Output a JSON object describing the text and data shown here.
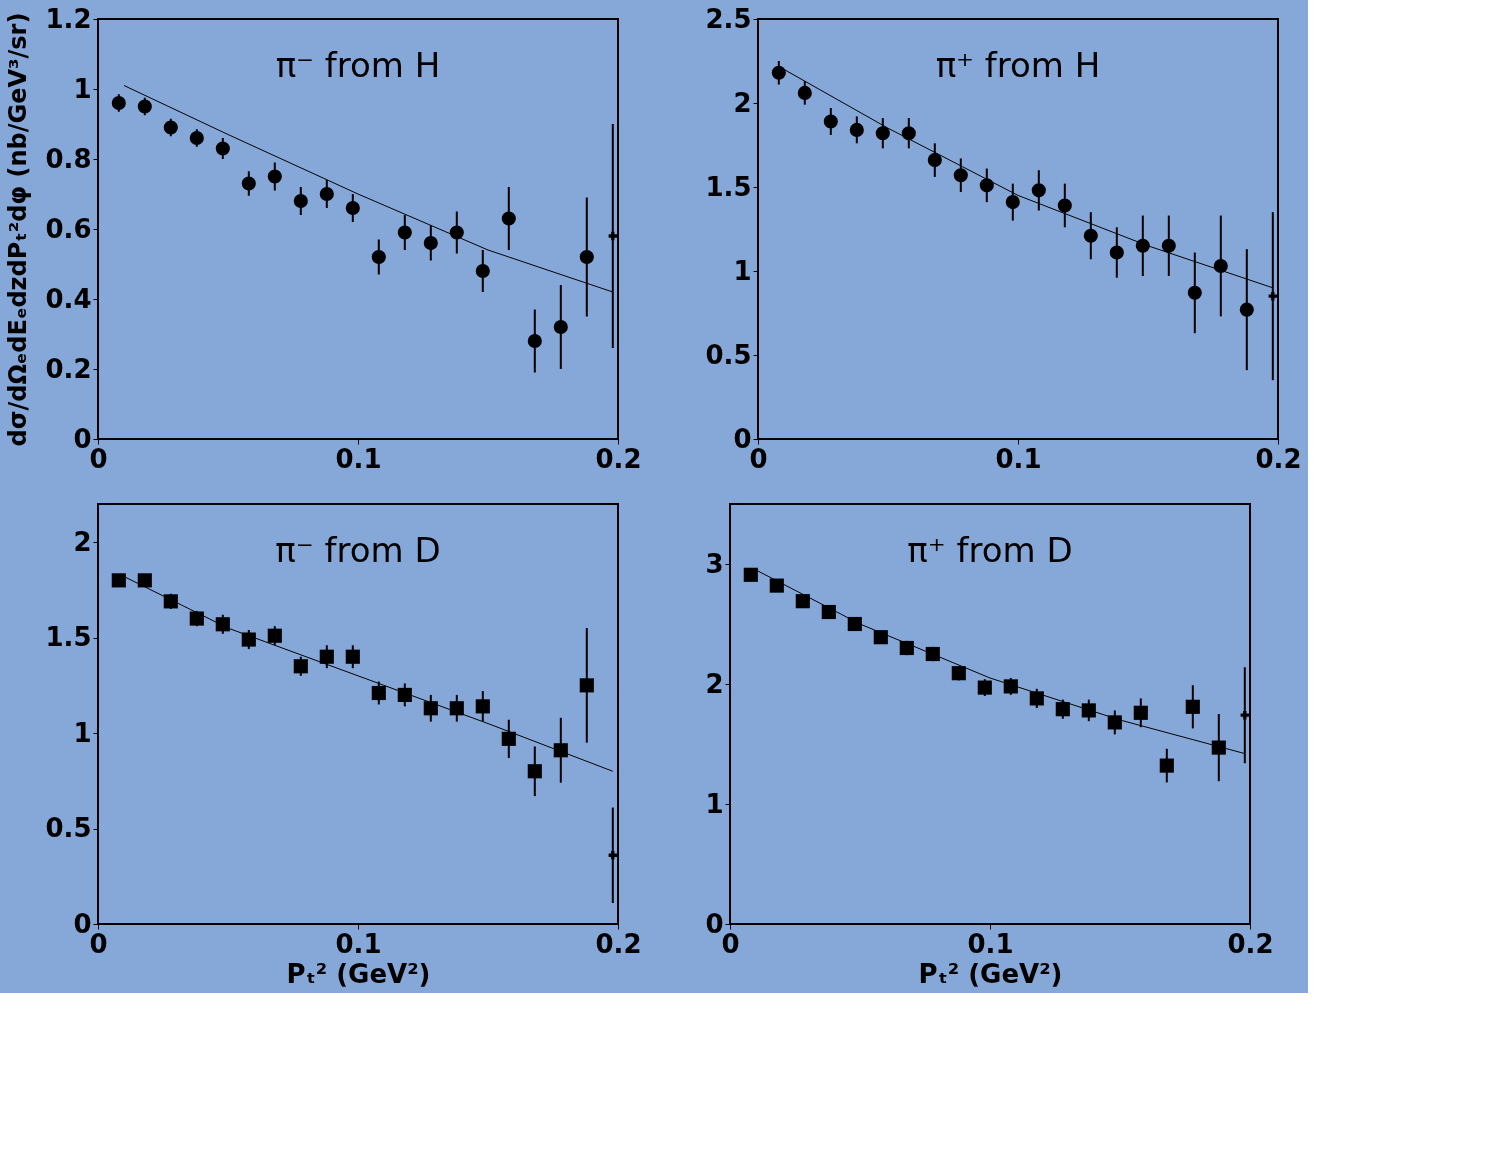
{
  "chart_data": [
    {
      "type": "scatter",
      "title": "π⁻ from H",
      "ylabel": "dσ/dΩₑdEₑdzdPₜ²dφ  (nb/GeV³/sr)",
      "xlim": [
        0,
        0.2
      ],
      "xticks": [
        0,
        0.1,
        0.2
      ],
      "ylim": [
        0,
        1.2
      ],
      "yticks": [
        0,
        0.2,
        0.4,
        0.6,
        0.8,
        1,
        1.2
      ],
      "grid": false,
      "series": [
        {
          "marker": "circle",
          "color": "#000000",
          "x": [
            0.008,
            0.018,
            0.028,
            0.038,
            0.048,
            0.058,
            0.068,
            0.078,
            0.088,
            0.098,
            0.108,
            0.118,
            0.128,
            0.138,
            0.148,
            0.158,
            0.168,
            0.178,
            0.188
          ],
          "values": [
            0.96,
            0.95,
            0.89,
            0.86,
            0.83,
            0.73,
            0.75,
            0.68,
            0.7,
            0.66,
            0.52,
            0.59,
            0.56,
            0.59,
            0.48,
            0.63,
            0.28,
            0.32,
            0.52
          ],
          "errors": [
            0.025,
            0.025,
            0.025,
            0.025,
            0.03,
            0.035,
            0.04,
            0.04,
            0.04,
            0.04,
            0.05,
            0.05,
            0.05,
            0.06,
            0.06,
            0.09,
            0.09,
            0.12,
            0.17
          ]
        },
        {
          "marker": "cross",
          "color": "#000000",
          "x": [
            0.198
          ],
          "values": [
            0.58
          ],
          "errors": [
            0.32
          ]
        },
        {
          "type": "line",
          "color": "#000000",
          "x": [
            0.01,
            0.05,
            0.1,
            0.15,
            0.198
          ],
          "values": [
            1.01,
            0.87,
            0.7,
            0.54,
            0.42
          ]
        }
      ]
    },
    {
      "type": "scatter",
      "title": "π⁺ from H",
      "xlim": [
        0,
        0.2
      ],
      "xticks": [
        0,
        0.1,
        0.2
      ],
      "ylim": [
        0,
        2.5
      ],
      "yticks": [
        0,
        0.5,
        1,
        1.5,
        2,
        2.5
      ],
      "grid": false,
      "series": [
        {
          "marker": "circle",
          "color": "#000000",
          "x": [
            0.008,
            0.018,
            0.028,
            0.038,
            0.048,
            0.058,
            0.068,
            0.078,
            0.088,
            0.098,
            0.108,
            0.118,
            0.128,
            0.138,
            0.148,
            0.158,
            0.168,
            0.178,
            0.188
          ],
          "values": [
            2.18,
            2.06,
            1.89,
            1.84,
            1.82,
            1.82,
            1.66,
            1.57,
            1.51,
            1.41,
            1.48,
            1.39,
            1.21,
            1.11,
            1.15,
            1.15,
            0.87,
            1.03,
            0.77
          ],
          "errors": [
            0.07,
            0.07,
            0.08,
            0.08,
            0.09,
            0.09,
            0.1,
            0.1,
            0.1,
            0.11,
            0.12,
            0.13,
            0.14,
            0.15,
            0.18,
            0.18,
            0.24,
            0.3,
            0.36
          ]
        },
        {
          "marker": "cross",
          "color": "#000000",
          "x": [
            0.198
          ],
          "values": [
            0.85
          ],
          "errors": [
            0.5
          ]
        },
        {
          "type": "line",
          "color": "#000000",
          "x": [
            0.01,
            0.05,
            0.1,
            0.15,
            0.198
          ],
          "values": [
            2.2,
            1.85,
            1.45,
            1.15,
            0.9
          ]
        }
      ]
    },
    {
      "type": "scatter",
      "title": "π⁻ from D",
      "xlabel": "Pₜ² (GeV²)",
      "xlim": [
        0,
        0.2
      ],
      "xticks": [
        0,
        0.1,
        0.2
      ],
      "ylim": [
        0,
        2.2
      ],
      "yticks": [
        0,
        0.5,
        1,
        1.5,
        2
      ],
      "grid": false,
      "series": [
        {
          "marker": "square",
          "color": "#000000",
          "x": [
            0.008,
            0.018,
            0.028,
            0.038,
            0.048,
            0.058,
            0.068,
            0.078,
            0.088,
            0.098,
            0.108,
            0.118,
            0.128,
            0.138,
            0.148,
            0.158,
            0.168,
            0.178,
            0.188
          ],
          "values": [
            1.8,
            1.8,
            1.69,
            1.6,
            1.57,
            1.49,
            1.51,
            1.35,
            1.4,
            1.4,
            1.21,
            1.2,
            1.13,
            1.13,
            1.14,
            0.97,
            0.8,
            0.91,
            1.25
          ],
          "errors": [
            0.03,
            0.03,
            0.04,
            0.04,
            0.05,
            0.05,
            0.05,
            0.05,
            0.06,
            0.06,
            0.06,
            0.06,
            0.07,
            0.07,
            0.08,
            0.1,
            0.13,
            0.17,
            0.3
          ]
        },
        {
          "marker": "cross",
          "color": "#000000",
          "x": [
            0.198
          ],
          "values": [
            0.36
          ],
          "errors": [
            0.25
          ]
        },
        {
          "type": "line",
          "color": "#000000",
          "x": [
            0.01,
            0.05,
            0.1,
            0.15,
            0.198
          ],
          "values": [
            1.82,
            1.55,
            1.3,
            1.05,
            0.8
          ]
        }
      ]
    },
    {
      "type": "scatter",
      "title": "π⁺ from D",
      "xlabel": "Pₜ² (GeV²)",
      "xlim": [
        0,
        0.2
      ],
      "xticks": [
        0,
        0.1,
        0.2
      ],
      "ylim": [
        0,
        3.5
      ],
      "yticks": [
        0,
        1,
        2,
        3
      ],
      "grid": false,
      "series": [
        {
          "marker": "square",
          "color": "#000000",
          "x": [
            0.008,
            0.018,
            0.028,
            0.038,
            0.048,
            0.058,
            0.068,
            0.078,
            0.088,
            0.098,
            0.108,
            0.118,
            0.128,
            0.138,
            0.148,
            0.158,
            0.168,
            0.178,
            0.188
          ],
          "values": [
            2.91,
            2.82,
            2.69,
            2.6,
            2.5,
            2.39,
            2.3,
            2.25,
            2.09,
            1.97,
            1.98,
            1.88,
            1.79,
            1.78,
            1.68,
            1.76,
            1.32,
            1.81,
            1.47
          ],
          "errors": [
            0.04,
            0.04,
            0.05,
            0.05,
            0.05,
            0.05,
            0.06,
            0.06,
            0.06,
            0.07,
            0.07,
            0.08,
            0.08,
            0.09,
            0.1,
            0.12,
            0.14,
            0.18,
            0.28
          ]
        },
        {
          "marker": "cross",
          "color": "#000000",
          "x": [
            0.198
          ],
          "values": [
            1.74
          ],
          "errors": [
            0.4
          ]
        },
        {
          "type": "line",
          "color": "#000000",
          "x": [
            0.01,
            0.05,
            0.1,
            0.15,
            0.198
          ],
          "values": [
            2.95,
            2.5,
            2.05,
            1.7,
            1.42
          ]
        }
      ]
    }
  ]
}
